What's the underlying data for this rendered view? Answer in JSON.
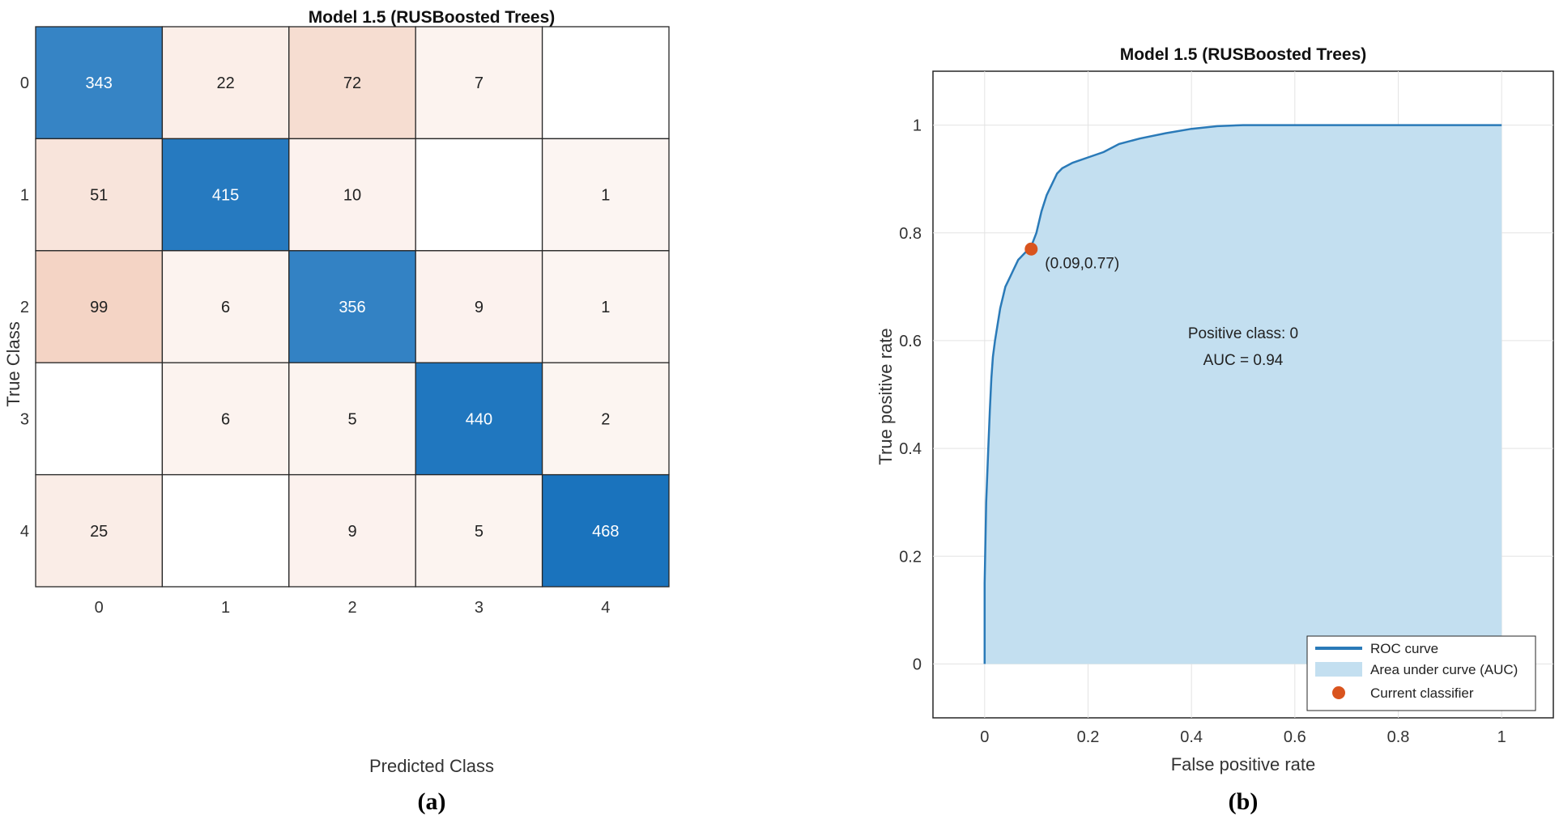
{
  "chart_data": [
    {
      "type": "heatmap",
      "title": "Model 1.5 (RUSBoosted Trees)",
      "xlabel": "Predicted Class",
      "ylabel": "True Class",
      "x_categories": [
        "0",
        "1",
        "2",
        "3",
        "4"
      ],
      "y_categories": [
        "0",
        "1",
        "2",
        "3",
        "4"
      ],
      "matrix": [
        [
          343,
          22,
          72,
          7,
          null
        ],
        [
          51,
          415,
          10,
          null,
          1
        ],
        [
          99,
          6,
          356,
          9,
          1
        ],
        [
          null,
          6,
          5,
          440,
          2
        ],
        [
          25,
          null,
          9,
          5,
          468
        ]
      ],
      "colors": {
        "diagonal": "#1a73bd",
        "off_diagonal": "#e6a07e",
        "empty": "#ffffff"
      },
      "panel_label": "(a)"
    },
    {
      "type": "area",
      "title": "Model 1.5 (RUSBoosted Trees)",
      "xlabel": "False positive rate",
      "ylabel": "True positive rate",
      "xlim": [
        -0.1,
        1.1
      ],
      "ylim": [
        -0.1,
        1.1
      ],
      "xticks": [
        0,
        0.2,
        0.4,
        0.6,
        0.8,
        1
      ],
      "xtick_labels": [
        "0",
        "0.2",
        "0.4",
        "0.6",
        "0.8",
        "1"
      ],
      "yticks": [
        0,
        0.2,
        0.4,
        0.6,
        0.8,
        1
      ],
      "ytick_labels": [
        "0",
        "0.2",
        "0.4",
        "0.6",
        "0.8",
        "1"
      ],
      "grid": true,
      "series": [
        {
          "name": "ROC curve",
          "x": [
            0,
            0.0,
            0.003,
            0.005,
            0.007,
            0.01,
            0.013,
            0.016,
            0.02,
            0.025,
            0.03,
            0.035,
            0.04,
            0.045,
            0.05,
            0.055,
            0.06,
            0.065,
            0.07,
            0.075,
            0.08,
            0.085,
            0.09,
            0.1,
            0.11,
            0.12,
            0.13,
            0.14,
            0.15,
            0.17,
            0.2,
            0.23,
            0.26,
            0.3,
            0.35,
            0.4,
            0.45,
            0.5,
            0.6,
            0.8,
            1.0
          ],
          "y": [
            0,
            0.15,
            0.3,
            0.35,
            0.4,
            0.47,
            0.53,
            0.57,
            0.6,
            0.63,
            0.66,
            0.68,
            0.7,
            0.71,
            0.72,
            0.73,
            0.74,
            0.75,
            0.755,
            0.76,
            0.765,
            0.77,
            0.775,
            0.8,
            0.84,
            0.87,
            0.89,
            0.91,
            0.92,
            0.93,
            0.94,
            0.95,
            0.965,
            0.975,
            0.985,
            0.993,
            0.998,
            1.0,
            1.0,
            1.0,
            1.0
          ],
          "color": "#2a7ab8"
        },
        {
          "name": "Area under curve (AUC)",
          "color": "#c3dff0"
        },
        {
          "name": "Current classifier",
          "x": [
            0.09
          ],
          "y": [
            0.77
          ],
          "color": "#d9541e"
        }
      ],
      "annotations": [
        "(0.09,0.77)",
        "Positive class: 0",
        "AUC = 0.94"
      ],
      "legend_position": "bottom-right",
      "panel_label": "(b)"
    }
  ]
}
